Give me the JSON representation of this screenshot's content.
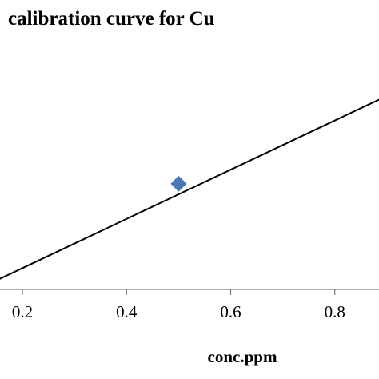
{
  "chart_data": {
    "type": "scatter",
    "title": "calibration curve for Cu",
    "xlabel": "conc.ppm",
    "ylabel": "",
    "xlim": [
      0.15,
      0.93
    ],
    "ylim": [
      0,
      1
    ],
    "x_ticks": [
      0.2,
      0.4,
      0.6,
      0.8
    ],
    "x_tick_labels": [
      "0.2",
      "0.4",
      "0.6",
      "0.8"
    ],
    "series": [
      {
        "type": "scatter",
        "marker": "diamond",
        "color": "#4a78b4",
        "points": [
          {
            "x": 0.5,
            "y": 0.535
          }
        ]
      },
      {
        "type": "trendline",
        "color": "#000000",
        "points": [
          {
            "x": 0.15,
            "y": 0.29
          },
          {
            "x": 0.93,
            "y": 0.776
          }
        ]
      }
    ],
    "grid": false,
    "legend": "none"
  }
}
